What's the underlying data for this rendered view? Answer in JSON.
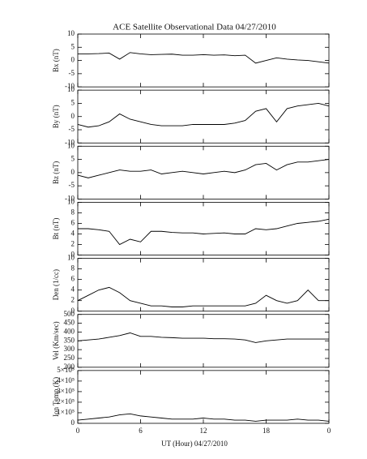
{
  "chart_data": [
    {
      "type": "line",
      "title": "ACE Satellite Observational Data   04/27/2010",
      "ylabel": "Bx (nT)",
      "color": "#000000",
      "x": [
        0,
        1,
        2,
        3,
        4,
        5,
        6,
        7,
        8,
        9,
        10,
        11,
        12,
        13,
        14,
        15,
        16,
        17,
        18,
        19,
        20,
        21,
        22,
        23,
        24
      ],
      "values": [
        2.5,
        2.5,
        2.6,
        2.8,
        0.5,
        3,
        2.5,
        2.2,
        2.3,
        2.4,
        2,
        2,
        2.2,
        2,
        2.1,
        1.8,
        2,
        -1,
        0,
        1,
        0.5,
        0.2,
        0,
        -0.5,
        -1
      ],
      "xlim": [
        0,
        24
      ],
      "ylim": [
        -10,
        10
      ],
      "yticks": [
        -10,
        -5,
        0,
        5,
        10
      ]
    },
    {
      "type": "line",
      "ylabel": "By (nT)",
      "color": "#000000",
      "x": [
        0,
        1,
        2,
        3,
        4,
        5,
        6,
        7,
        8,
        9,
        10,
        11,
        12,
        13,
        14,
        15,
        16,
        17,
        18,
        19,
        20,
        21,
        22,
        23,
        24
      ],
      "values": [
        -3,
        -4,
        -3.5,
        -2,
        1,
        -1,
        -2,
        -3,
        -3.5,
        -3.5,
        -3.5,
        -3,
        -3,
        -3,
        -3,
        -2.5,
        -1.5,
        2,
        3,
        -2,
        3,
        4,
        4.5,
        5,
        4
      ],
      "xlim": [
        0,
        24
      ],
      "ylim": [
        -10,
        10
      ],
      "yticks": [
        -10,
        -5,
        0,
        5,
        10
      ]
    },
    {
      "type": "line",
      "ylabel": "Bz (nT)",
      "color": "#000000",
      "x": [
        0,
        1,
        2,
        3,
        4,
        5,
        6,
        7,
        8,
        9,
        10,
        11,
        12,
        13,
        14,
        15,
        16,
        17,
        18,
        19,
        20,
        21,
        22,
        23,
        24
      ],
      "values": [
        -1,
        -2,
        -1,
        0,
        1,
        0.5,
        0.5,
        1,
        -0.5,
        0,
        0.5,
        0,
        -0.5,
        0,
        0.5,
        0,
        1,
        3,
        3.5,
        1,
        3,
        4,
        4,
        4.5,
        5
      ],
      "xlim": [
        0,
        24
      ],
      "ylim": [
        -10,
        10
      ],
      "yticks": [
        -10,
        -5,
        0,
        5,
        10
      ]
    },
    {
      "type": "line",
      "ylabel": "Bt (nT)",
      "color": "#000000",
      "x": [
        0,
        1,
        2,
        3,
        4,
        5,
        6,
        7,
        8,
        9,
        10,
        11,
        12,
        13,
        14,
        15,
        16,
        17,
        18,
        19,
        20,
        21,
        22,
        23,
        24
      ],
      "values": [
        5,
        5,
        4.8,
        4.5,
        2,
        3,
        2.5,
        4.5,
        4.5,
        4.3,
        4.2,
        4.2,
        4,
        4.1,
        4.2,
        4,
        4,
        5,
        4.8,
        5,
        5.5,
        6,
        6.2,
        6.4,
        6.8
      ],
      "xlim": [
        0,
        24
      ],
      "ylim": [
        0,
        10
      ],
      "yticks": [
        0,
        2,
        4,
        6,
        8,
        10
      ]
    },
    {
      "type": "line",
      "ylabel": "Den (1/cc)",
      "color": "#000000",
      "x": [
        0,
        1,
        2,
        3,
        4,
        5,
        6,
        7,
        8,
        9,
        10,
        11,
        12,
        13,
        14,
        15,
        16,
        17,
        18,
        19,
        20,
        21,
        22,
        23,
        24
      ],
      "values": [
        2,
        3,
        4,
        4.5,
        3.5,
        2,
        1.5,
        1,
        1,
        0.8,
        0.8,
        1,
        1,
        1,
        1,
        1,
        1,
        1.5,
        3,
        2,
        1.5,
        2,
        4,
        2,
        2
      ],
      "xlim": [
        0,
        24
      ],
      "ylim": [
        0,
        10
      ],
      "yticks": [
        0,
        2,
        4,
        6,
        8,
        10
      ]
    },
    {
      "type": "line",
      "ylabel": "Vel (Km/sec)",
      "color": "#000000",
      "x": [
        0,
        1,
        2,
        3,
        4,
        5,
        6,
        7,
        8,
        9,
        10,
        11,
        12,
        13,
        14,
        15,
        16,
        17,
        18,
        19,
        20,
        21,
        22,
        23,
        24
      ],
      "values": [
        350,
        355,
        360,
        370,
        380,
        395,
        375,
        375,
        370,
        368,
        365,
        365,
        365,
        362,
        362,
        360,
        355,
        340,
        350,
        355,
        360,
        360,
        360,
        360,
        360
      ],
      "xlim": [
        0,
        24
      ],
      "ylim": [
        200,
        500
      ],
      "yticks": [
        200,
        250,
        300,
        350,
        400,
        450,
        500
      ]
    },
    {
      "type": "line",
      "ylabel": "Ion Temp (K)",
      "xlabel": "UT (Hour)   04/27/2010",
      "color": "#000000",
      "x": [
        0,
        1,
        2,
        3,
        4,
        5,
        6,
        7,
        8,
        9,
        10,
        11,
        12,
        13,
        14,
        15,
        16,
        17,
        18,
        19,
        20,
        21,
        22,
        23,
        24
      ],
      "values": [
        30000,
        40000,
        50000,
        60000,
        80000,
        90000,
        70000,
        60000,
        50000,
        40000,
        40000,
        40000,
        50000,
        40000,
        40000,
        30000,
        30000,
        20000,
        30000,
        30000,
        30000,
        40000,
        30000,
        30000,
        20000
      ],
      "xlim": [
        0,
        24
      ],
      "xticks": [
        0,
        6,
        12,
        18,
        {
          "value": 24,
          "label": "0"
        }
      ],
      "ylim": [
        0,
        500000
      ],
      "yticks": [
        0,
        {
          "value": 100000,
          "label": "1×10⁵"
        },
        {
          "value": 200000,
          "label": "2×10⁵"
        },
        {
          "value": 300000,
          "label": "3×10⁵"
        },
        {
          "value": 400000,
          "label": "4×10⁵"
        },
        {
          "value": 500000,
          "label": "5×10⁵"
        }
      ]
    }
  ]
}
